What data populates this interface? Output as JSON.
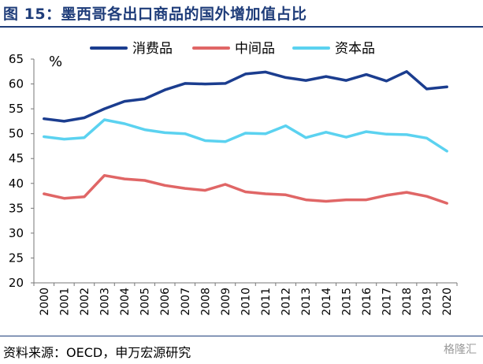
{
  "title": "图 15：墨西哥各出口商品的国外增加值占比",
  "source": "资料来源：OECD，申万宏源研究",
  "watermark": "格隆汇",
  "chart_data": {
    "type": "line",
    "title": "图 15：墨西哥各出口商品的国外增加值占比",
    "ylabel": "%",
    "xlabel": "",
    "ylim": [
      20,
      65
    ],
    "yticks": [
      20,
      25,
      30,
      35,
      40,
      45,
      50,
      55,
      60,
      65
    ],
    "legend_position": "top",
    "grid": false,
    "x": [
      "2000",
      "2001",
      "2002",
      "2003",
      "2004",
      "2005",
      "2006",
      "2007",
      "2008",
      "2009",
      "2010",
      "2011",
      "2012",
      "2013",
      "2014",
      "2015",
      "2016",
      "2017",
      "2018",
      "2019",
      "2020"
    ],
    "series": [
      {
        "name": "消费品",
        "color": "#1b3d8f",
        "values": [
          53.0,
          52.5,
          53.2,
          55.0,
          56.5,
          57.0,
          58.8,
          60.1,
          60.0,
          60.1,
          62.0,
          62.4,
          61.3,
          60.7,
          61.5,
          60.7,
          61.9,
          60.6,
          62.5,
          59.0,
          59.4
        ]
      },
      {
        "name": "中间品",
        "color": "#e06666",
        "values": [
          37.9,
          37.0,
          37.3,
          41.6,
          40.9,
          40.6,
          39.6,
          39.0,
          38.6,
          39.8,
          38.3,
          37.9,
          37.7,
          36.7,
          36.4,
          36.7,
          36.7,
          37.6,
          38.2,
          37.4,
          36.0
        ]
      },
      {
        "name": "资本品",
        "color": "#5bd2f0",
        "values": [
          49.4,
          48.9,
          49.2,
          52.8,
          52.0,
          50.8,
          50.2,
          50.0,
          48.6,
          48.4,
          50.1,
          50.0,
          51.6,
          49.2,
          50.3,
          49.3,
          50.4,
          49.9,
          49.8,
          49.1,
          46.5
        ]
      }
    ]
  }
}
